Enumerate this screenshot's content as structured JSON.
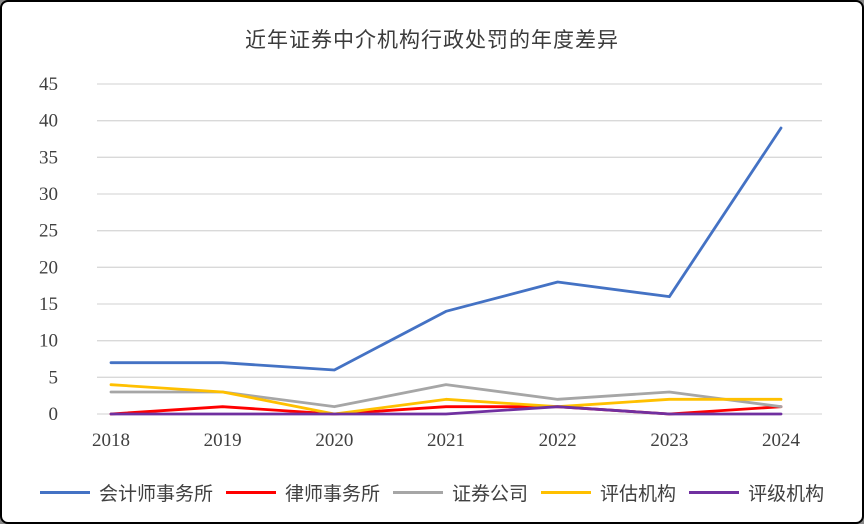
{
  "frame": {
    "background_color": "#ffffff",
    "border_color": "#000000"
  },
  "chart_data": {
    "type": "line",
    "title": "近年证券中介机构行政处罚的年度差异",
    "xlabel": "",
    "ylabel": "",
    "categories": [
      "2018",
      "2019",
      "2020",
      "2021",
      "2022",
      "2023",
      "2024"
    ],
    "series": [
      {
        "name": "会计师事务所",
        "color": "#4472C4",
        "values": [
          7,
          7,
          6,
          14,
          18,
          16,
          39
        ]
      },
      {
        "name": "律师事务所",
        "color": "#FF0000",
        "values": [
          0,
          1,
          0,
          1,
          1,
          0,
          1
        ]
      },
      {
        "name": "证券公司",
        "color": "#A6A6A6",
        "values": [
          3,
          3,
          1,
          4,
          2,
          3,
          1
        ]
      },
      {
        "name": "评估机构",
        "color": "#FFC000",
        "values": [
          4,
          3,
          0,
          2,
          1,
          2,
          2
        ]
      },
      {
        "name": "评级机构",
        "color": "#7030A0",
        "values": [
          0,
          0,
          0,
          0,
          1,
          0,
          0
        ]
      }
    ],
    "ylim": [
      0,
      45
    ],
    "yticks": [
      0,
      5,
      10,
      15,
      20,
      25,
      30,
      35,
      40,
      45
    ],
    "grid": true,
    "legend_position": "bottom",
    "axis_text_color": "#404040",
    "gridline_color": "#D9D9D9"
  }
}
